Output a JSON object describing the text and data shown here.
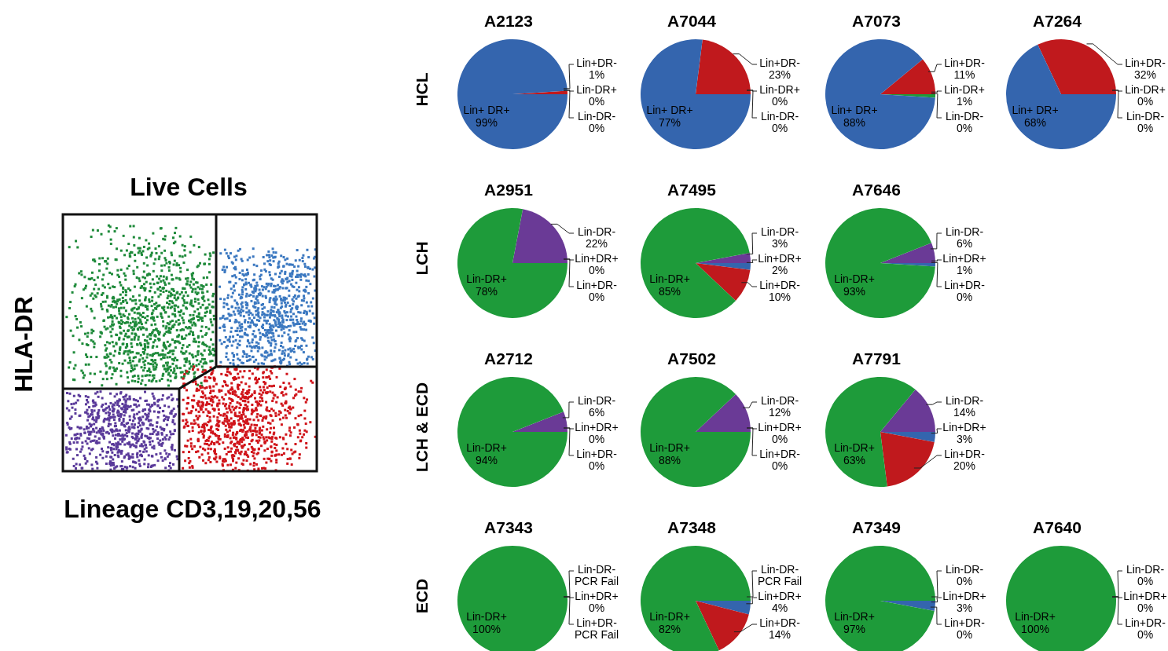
{
  "chart_data": [
    {
      "type": "other",
      "title": "Live Cells",
      "xlabel": "Lineage CD3,19,20,56",
      "ylabel": "HLA-DR"
    },
    {
      "type": "pie",
      "title": "A2123",
      "ylabel": "HCL",
      "categories": [
        "Lin+DR-",
        "Lin-DR+",
        "Lin-DR-",
        "Lin+ DR+"
      ],
      "values": [
        1,
        0,
        0,
        99
      ],
      "colors": [
        "#c0191d",
        "#1e9b3a",
        "#6a3a96",
        "#3465ae"
      ],
      "value_labels": [
        "1%",
        "0%",
        "0%",
        "99%"
      ]
    },
    {
      "type": "pie",
      "title": "A7044",
      "categories": [
        "Lin+DR-",
        "Lin-DR+",
        "Lin-DR-",
        "Lin+ DR+"
      ],
      "values": [
        23,
        0,
        0,
        77
      ],
      "colors": [
        "#c0191d",
        "#1e9b3a",
        "#6a3a96",
        "#3465ae"
      ],
      "value_labels": [
        "23%",
        "0%",
        "0%",
        "77%"
      ]
    },
    {
      "type": "pie",
      "title": "A7073",
      "categories": [
        "Lin+DR-",
        "Lin-DR+",
        "Lin-DR-",
        "Lin+ DR+"
      ],
      "values": [
        11,
        1,
        0,
        88
      ],
      "colors": [
        "#c0191d",
        "#1e9b3a",
        "#6a3a96",
        "#3465ae"
      ],
      "value_labels": [
        "11%",
        "1%",
        "0%",
        "88%"
      ]
    },
    {
      "type": "pie",
      "title": "A7264",
      "categories": [
        "Lin+DR-",
        "Lin-DR+",
        "Lin-DR-",
        "Lin+ DR+"
      ],
      "values": [
        32,
        0,
        0,
        68
      ],
      "colors": [
        "#c0191d",
        "#1e9b3a",
        "#6a3a96",
        "#3465ae"
      ],
      "value_labels": [
        "32%",
        "0%",
        "0%",
        "68%"
      ]
    },
    {
      "type": "pie",
      "title": "A2951",
      "ylabel": "LCH",
      "categories": [
        "Lin-DR-",
        "Lin+DR+",
        "Lin+DR-",
        "Lin-DR+"
      ],
      "values": [
        22,
        0,
        0,
        78
      ],
      "colors": [
        "#6a3a96",
        "#3465ae",
        "#c0191d",
        "#1e9b3a"
      ],
      "value_labels": [
        "22%",
        "0%",
        "0%",
        "78%"
      ]
    },
    {
      "type": "pie",
      "title": "A7495",
      "categories": [
        "Lin-DR-",
        "Lin+DR+",
        "Lin+DR-",
        "Lin-DR+"
      ],
      "values": [
        3,
        2,
        10,
        85
      ],
      "colors": [
        "#6a3a96",
        "#3465ae",
        "#c0191d",
        "#1e9b3a"
      ],
      "value_labels": [
        "3%",
        "2%",
        "10%",
        "85%"
      ]
    },
    {
      "type": "pie",
      "title": "A7646",
      "categories": [
        "Lin-DR-",
        "Lin+DR+",
        "Lin+DR-",
        "Lin-DR+"
      ],
      "values": [
        6,
        1,
        0,
        93
      ],
      "colors": [
        "#6a3a96",
        "#3465ae",
        "#c0191d",
        "#1e9b3a"
      ],
      "value_labels": [
        "6%",
        "1%",
        "0%",
        "93%"
      ]
    },
    {
      "type": "pie",
      "title": "A2712",
      "ylabel": "LCH & ECD",
      "categories": [
        "Lin-DR-",
        "Lin+DR+",
        "Lin+DR-",
        "Lin-DR+"
      ],
      "values": [
        6,
        0,
        0,
        94
      ],
      "colors": [
        "#6a3a96",
        "#3465ae",
        "#c0191d",
        "#1e9b3a"
      ],
      "value_labels": [
        "6%",
        "0%",
        "0%",
        "94%"
      ]
    },
    {
      "type": "pie",
      "title": "A7502",
      "categories": [
        "Lin-DR-",
        "Lin+DR+",
        "Lin+DR-",
        "Lin-DR+"
      ],
      "values": [
        12,
        0,
        0,
        88
      ],
      "colors": [
        "#6a3a96",
        "#3465ae",
        "#c0191d",
        "#1e9b3a"
      ],
      "value_labels": [
        "12%",
        "0%",
        "0%",
        "88%"
      ]
    },
    {
      "type": "pie",
      "title": "A7791",
      "categories": [
        "Lin-DR-",
        "Lin+DR+",
        "Lin+DR-",
        "Lin-DR+"
      ],
      "values": [
        14,
        3,
        20,
        63
      ],
      "colors": [
        "#6a3a96",
        "#3465ae",
        "#c0191d",
        "#1e9b3a"
      ],
      "value_labels": [
        "14%",
        "3%",
        "20%",
        "63%"
      ]
    },
    {
      "type": "pie",
      "title": "A7343",
      "ylabel": "ECD",
      "categories": [
        "Lin-DR-",
        "Lin+DR+",
        "Lin+DR-",
        "Lin-DR+"
      ],
      "values": [
        null,
        0,
        null,
        100
      ],
      "colors": [
        "#6a3a96",
        "#3465ae",
        "#c0191d",
        "#1e9b3a"
      ],
      "value_labels": [
        "PCR Fail",
        "0%",
        "PCR Fail",
        "100%"
      ]
    },
    {
      "type": "pie",
      "title": "A7348",
      "categories": [
        "Lin-DR-",
        "Lin+DR+",
        "Lin+DR-",
        "Lin-DR+"
      ],
      "values": [
        null,
        4,
        14,
        82
      ],
      "colors": [
        "#6a3a96",
        "#3465ae",
        "#c0191d",
        "#1e9b3a"
      ],
      "value_labels": [
        "PCR Fail",
        "4%",
        "14%",
        "82%"
      ]
    },
    {
      "type": "pie",
      "title": "A7349",
      "categories": [
        "Lin-DR-",
        "Lin+DR+",
        "Lin+DR-",
        "Lin-DR+"
      ],
      "values": [
        0,
        3,
        0,
        97
      ],
      "colors": [
        "#6a3a96",
        "#3465ae",
        "#c0191d",
        "#1e9b3a"
      ],
      "value_labels": [
        "0%",
        "3%",
        "0%",
        "97%"
      ]
    },
    {
      "type": "pie",
      "title": "A7640",
      "categories": [
        "Lin-DR-",
        "Lin+DR+",
        "Lin+DR-",
        "Lin-DR+"
      ],
      "values": [
        0,
        0,
        0,
        100
      ],
      "colors": [
        "#6a3a96",
        "#3465ae",
        "#c0191d",
        "#1e9b3a"
      ],
      "value_labels": [
        "0%",
        "0%",
        "0%",
        "100%"
      ]
    }
  ]
}
